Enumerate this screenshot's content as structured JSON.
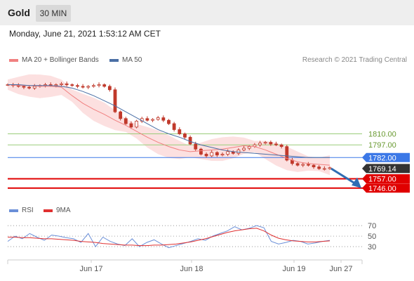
{
  "header": {
    "instrument": "Gold",
    "timeframe": "30 MIN"
  },
  "timestamp": "Monday, June 21, 2021 1:53:12 AM CET",
  "legend": {
    "ma20_label": "MA 20 + Bollinger Bands",
    "ma50_label": "MA 50"
  },
  "credit": "Research © 2021 Trading Central",
  "rsi_legend": {
    "rsi_label": "RSI",
    "ma_label": "9MA"
  },
  "colors": {
    "ma20": "#f08080",
    "ma50": "#4a6fa5",
    "band_fill": "#fbdada",
    "candle": "#c0392b",
    "green_level": "#9acd7a",
    "blue_level": "#3b78e7",
    "red_level": "#e00000",
    "current": "#333333",
    "arrow": "#2f6db3",
    "rsi": "#6a8fd8",
    "rsi_ma": "#e03030"
  },
  "chart_data": [
    {
      "type": "line",
      "ylim": [
        1740,
        1885
      ],
      "x_labels": [
        "Jun 17",
        "Jun 18",
        "Jun 19",
        "Jun 27"
      ],
      "grid": false,
      "series": [
        {
          "name": "Gold (candles)",
          "values": [
            1868,
            1867,
            1866,
            1865,
            1864,
            1866,
            1867,
            1868,
            1867,
            1868,
            1869,
            1868,
            1867,
            1866,
            1865,
            1866,
            1867,
            1868,
            1866,
            1862,
            1836,
            1828,
            1822,
            1818,
            1825,
            1828,
            1826,
            1827,
            1829,
            1826,
            1822,
            1815,
            1810,
            1806,
            1798,
            1792,
            1786,
            1784,
            1788,
            1785,
            1786,
            1789,
            1787,
            1791,
            1793,
            1795,
            1797,
            1799,
            1800,
            1798,
            1797,
            1795,
            1779,
            1775,
            1773,
            1774,
            1773,
            1771,
            1769,
            1769,
            1770
          ],
          "values_note": "Gold (candles)"
        },
        {
          "name": "MA 20 + Bollinger Bands",
          "values": [
            1868,
            1867,
            1867,
            1866,
            1866,
            1865,
            1855,
            1846,
            1839,
            1833,
            1826,
            1820,
            1813,
            1806,
            1800,
            1795,
            1791,
            1789,
            1790,
            1791,
            1792,
            1794,
            1796,
            1795,
            1791,
            1786,
            1781,
            1777,
            1775,
            1774,
            1773
          ]
        },
        {
          "name": "MA 50",
          "values": [
            1868,
            1868,
            1867,
            1867,
            1867,
            1866,
            1864,
            1860,
            1855,
            1849,
            1843,
            1836,
            1829,
            1822,
            1815,
            1810,
            1806,
            1801,
            1797,
            1794,
            1791,
            1789,
            1788,
            1787,
            1786,
            1785,
            1784,
            1783,
            1782,
            1782,
            1782
          ]
        }
      ],
      "levels": [
        {
          "value": 1810.0,
          "label": "1810.00",
          "kind": "resistance"
        },
        {
          "value": 1797.0,
          "label": "1797.00",
          "kind": "resistance"
        },
        {
          "value": 1782.0,
          "label": "1782.00",
          "kind": "pivot"
        },
        {
          "value": 1769.14,
          "label": "1769.14",
          "kind": "current"
        },
        {
          "value": 1757.0,
          "label": "1757.00",
          "kind": "support"
        },
        {
          "value": 1746.0,
          "label": "1746.00",
          "kind": "support"
        }
      ],
      "arrow": {
        "from": 1769,
        "to": 1751,
        "direction": "down"
      }
    },
    {
      "type": "line",
      "ylim": [
        10,
        85
      ],
      "ticks": [
        70,
        50,
        30
      ],
      "series": [
        {
          "name": "RSI",
          "values": [
            40,
            50,
            45,
            55,
            48,
            42,
            52,
            50,
            47,
            45,
            38,
            55,
            30,
            48,
            40,
            35,
            32,
            45,
            30,
            38,
            43,
            35,
            28,
            32,
            36,
            40,
            45,
            42,
            50,
            55,
            60,
            68,
            62,
            65,
            70,
            66,
            40,
            35,
            38,
            42,
            40,
            35,
            37,
            40,
            42
          ]
        },
        {
          "name": "9MA",
          "values": [
            48,
            48,
            47,
            47,
            46,
            45,
            45,
            44,
            43,
            42,
            40,
            39,
            38,
            36,
            35,
            34,
            33,
            33,
            32,
            32,
            33,
            33,
            34,
            35,
            37,
            39,
            42,
            45,
            49,
            53,
            57,
            60,
            62,
            64,
            65,
            60,
            52,
            46,
            43,
            41,
            40,
            39,
            39,
            40,
            41
          ]
        }
      ]
    }
  ]
}
